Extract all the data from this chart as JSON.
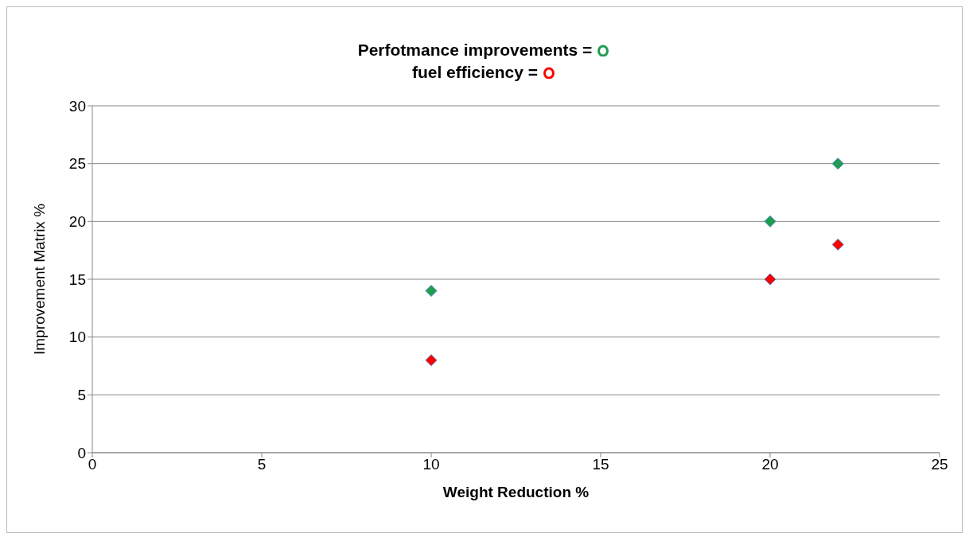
{
  "chart_data": {
    "type": "scatter",
    "xlabel": "Weight  Reduction %",
    "ylabel": "Improvement Matrix %",
    "xlim": [
      0,
      25
    ],
    "xticks": [
      0,
      5,
      10,
      15,
      20,
      25
    ],
    "ylim": [
      0,
      30
    ],
    "yticks": [
      0,
      5,
      10,
      15,
      20,
      25,
      30
    ],
    "grid": "y",
    "legend": "top",
    "marker": "diamond",
    "series": [
      {
        "name": "Perfotmance improvements =",
        "color": "#1e9e4e",
        "x": [
          10,
          20,
          22
        ],
        "values": [
          14,
          20,
          25
        ]
      },
      {
        "name": "fuel efficiency =",
        "color": "#ff0000",
        "x": [
          10,
          20,
          22
        ],
        "values": [
          8,
          15,
          18
        ]
      }
    ]
  }
}
